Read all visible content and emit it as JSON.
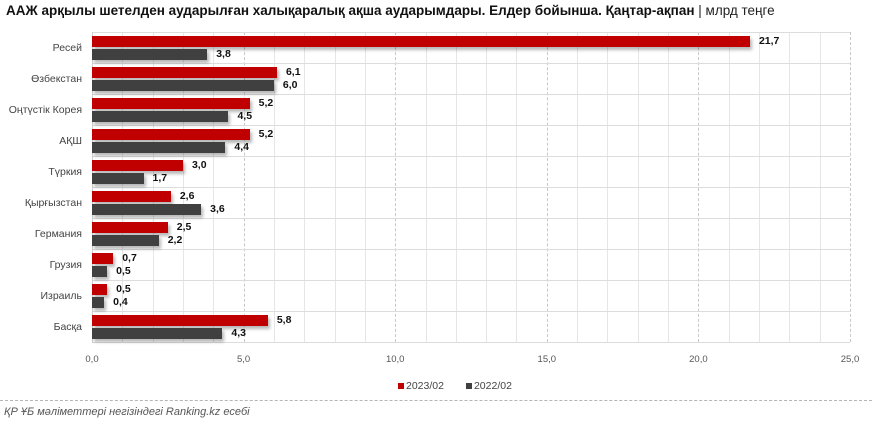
{
  "title": {
    "main": "ААЖ арқылы шетелден аударылған халықаралық ақша аударымдары. Елдер бойынша. Қаңтар-ақпан",
    "separator": "|",
    "unit": "млрд теңге"
  },
  "colors": {
    "series_2023": "#c00000",
    "series_2022": "#404040",
    "grid": "#e6e6e6",
    "major_grid": "#c8c8c8"
  },
  "legend": [
    {
      "label": "2023/02",
      "color": "#c00000"
    },
    {
      "label": "2022/02",
      "color": "#404040"
    }
  ],
  "source": "ҚР ҰБ мәліметтері негізіндегі Ranking.kz есебі",
  "chart_data": {
    "type": "bar",
    "orientation": "horizontal",
    "title": "ААЖ арқылы шетелден аударылған халықаралық ақша аударымдары. Елдер бойынша. Қаңтар-ақпан | млрд теңге",
    "xlabel": "",
    "ylabel": "",
    "xlim": [
      0,
      25
    ],
    "xticks": [
      "0,0",
      "5,0",
      "10,0",
      "15,0",
      "20,0",
      "25,0"
    ],
    "grid": true,
    "legend_position": "bottom",
    "categories": [
      "Ресей",
      "Өзбекстан",
      "Оңтүстік Корея",
      "АҚШ",
      "Түркия",
      "Қырғызстан",
      "Германия",
      "Грузия",
      "Израиль",
      "Басқа"
    ],
    "series": [
      {
        "name": "2023/02",
        "values": [
          21.7,
          6.1,
          5.2,
          5.2,
          3.0,
          2.6,
          2.5,
          0.7,
          0.5,
          5.8
        ],
        "labels": [
          "21,7",
          "6,1",
          "5,2",
          "5,2",
          "3,0",
          "2,6",
          "2,5",
          "0,7",
          "0,5",
          "5,8"
        ]
      },
      {
        "name": "2022/02",
        "values": [
          3.8,
          6.0,
          4.5,
          4.4,
          1.7,
          3.6,
          2.2,
          0.5,
          0.4,
          4.3
        ],
        "labels": [
          "3,8",
          "6,0",
          "4,5",
          "4,4",
          "1,7",
          "3,6",
          "2,2",
          "0,5",
          "0,4",
          "4,3"
        ]
      }
    ]
  }
}
